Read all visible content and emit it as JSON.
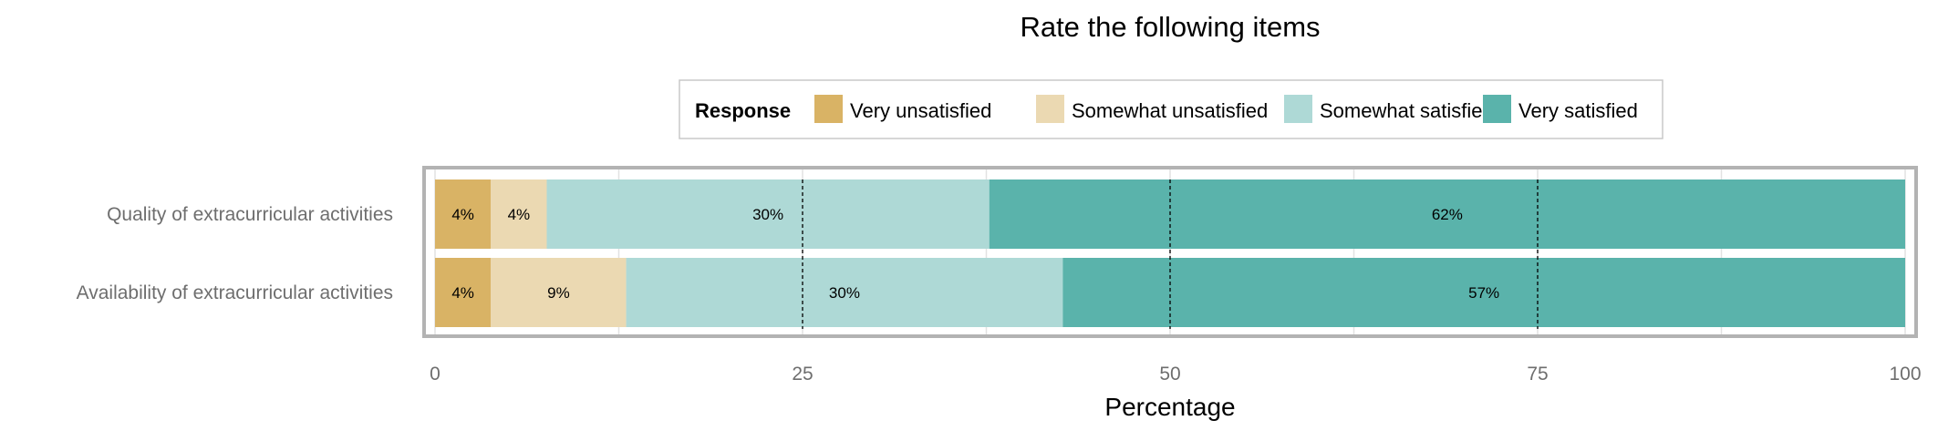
{
  "chart_data": {
    "type": "bar",
    "orientation": "horizontal",
    "stacked": true,
    "title": "Rate the following items",
    "xlabel": "Percentage",
    "ylabel": "",
    "xlim": [
      0,
      100
    ],
    "x_ticks": [
      "0",
      "25",
      "50",
      "75",
      "100"
    ],
    "reference_lines": [
      25,
      50,
      75
    ],
    "grid": true,
    "legend": {
      "title": "Response",
      "position": "top"
    },
    "categories": [
      "Quality of extracurricular activities",
      "Availability of extracurricular activities"
    ],
    "series": [
      {
        "name": "Very unsatisfied",
        "color": "#D9B365",
        "values": [
          3.8,
          3.8
        ],
        "labels": [
          "4%",
          "4%"
        ]
      },
      {
        "name": "Somewhat unsatisfied",
        "color": "#EBD9B2",
        "values": [
          3.8,
          9.2
        ],
        "labels": [
          "4%",
          "9%"
        ]
      },
      {
        "name": "Somewhat satisfied",
        "color": "#AED9D6",
        "values": [
          30.1,
          29.7
        ],
        "labels": [
          "30%",
          "30%"
        ]
      },
      {
        "name": "Very satisfied",
        "color": "#5AB3AB",
        "values": [
          62.3,
          57.3
        ],
        "labels": [
          "62%",
          "57%"
        ]
      }
    ]
  }
}
